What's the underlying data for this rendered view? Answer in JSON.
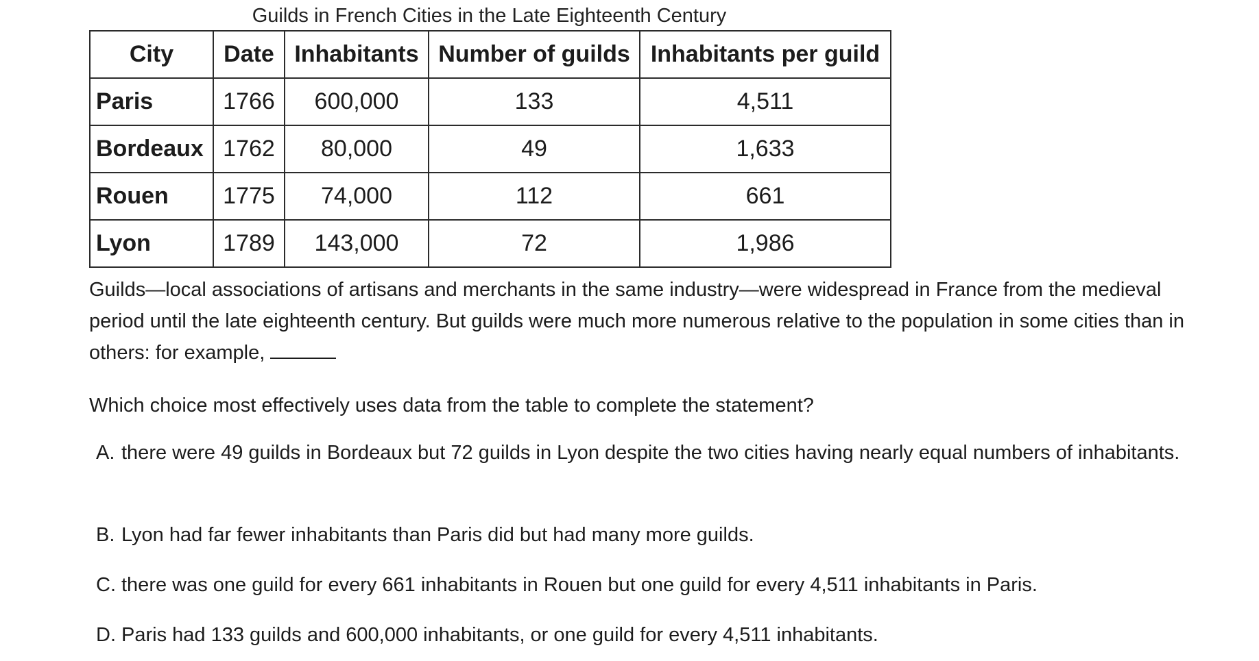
{
  "table": {
    "caption": "Guilds in French Cities in the Late Eighteenth Century",
    "headers": [
      "City",
      "Date",
      "Inhabitants",
      "Number of guilds",
      "Inhabitants per guild"
    ],
    "rows": [
      [
        "Paris",
        "1766",
        "600,000",
        "133",
        "4,511"
      ],
      [
        "Bordeaux",
        "1762",
        "80,000",
        "49",
        "1,633"
      ],
      [
        "Rouen",
        "1775",
        "74,000",
        "112",
        "661"
      ],
      [
        "Lyon",
        "1789",
        "143,000",
        "72",
        "1,986"
      ]
    ]
  },
  "passage": {
    "text": "Guilds—local associations of artisans and merchants in the same industry—were widespread in France from the medieval period until the late eighteenth century. But guilds were much more numerous relative to the population in some cities than in others: for example,"
  },
  "question": {
    "prompt": "Which choice most effectively uses data from the table to complete the statement?",
    "choices": [
      {
        "letter": "A.",
        "text": "there were 49 guilds in Bordeaux but 72 guilds in Lyon despite the two cities having nearly equal numbers of inhabitants."
      },
      {
        "letter": "B.",
        "text": "Lyon had far fewer inhabitants than Paris did but had many more guilds."
      },
      {
        "letter": "C.",
        "text": "there was one guild for every 661 inhabitants in Rouen but one guild for every 4,511 inhabitants in Paris."
      },
      {
        "letter": "D.",
        "text": "Paris had 133 guilds and 600,000 inhabitants, or one guild for every 4,511 inhabitants."
      }
    ]
  }
}
